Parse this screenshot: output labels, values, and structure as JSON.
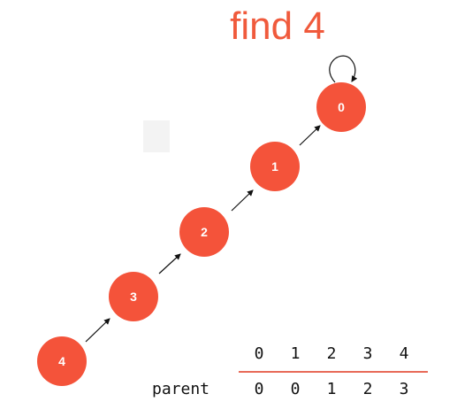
{
  "title": "find 4",
  "nodes": [
    {
      "id": "0",
      "label": "0"
    },
    {
      "id": "1",
      "label": "1"
    },
    {
      "id": "2",
      "label": "2"
    },
    {
      "id": "3",
      "label": "3"
    },
    {
      "id": "4",
      "label": "4"
    }
  ],
  "edges": [
    {
      "from": "4",
      "to": "3"
    },
    {
      "from": "3",
      "to": "2"
    },
    {
      "from": "2",
      "to": "1"
    },
    {
      "from": "1",
      "to": "0"
    },
    {
      "from": "0",
      "to": "0"
    }
  ],
  "table": {
    "indices": [
      "0",
      "1",
      "2",
      "3",
      "4"
    ],
    "row_label": "parent",
    "parent": [
      "0",
      "0",
      "1",
      "2",
      "3"
    ]
  },
  "colors": {
    "node": "#f4533a",
    "title": "#f05a3c",
    "rule": "#e86a58"
  }
}
